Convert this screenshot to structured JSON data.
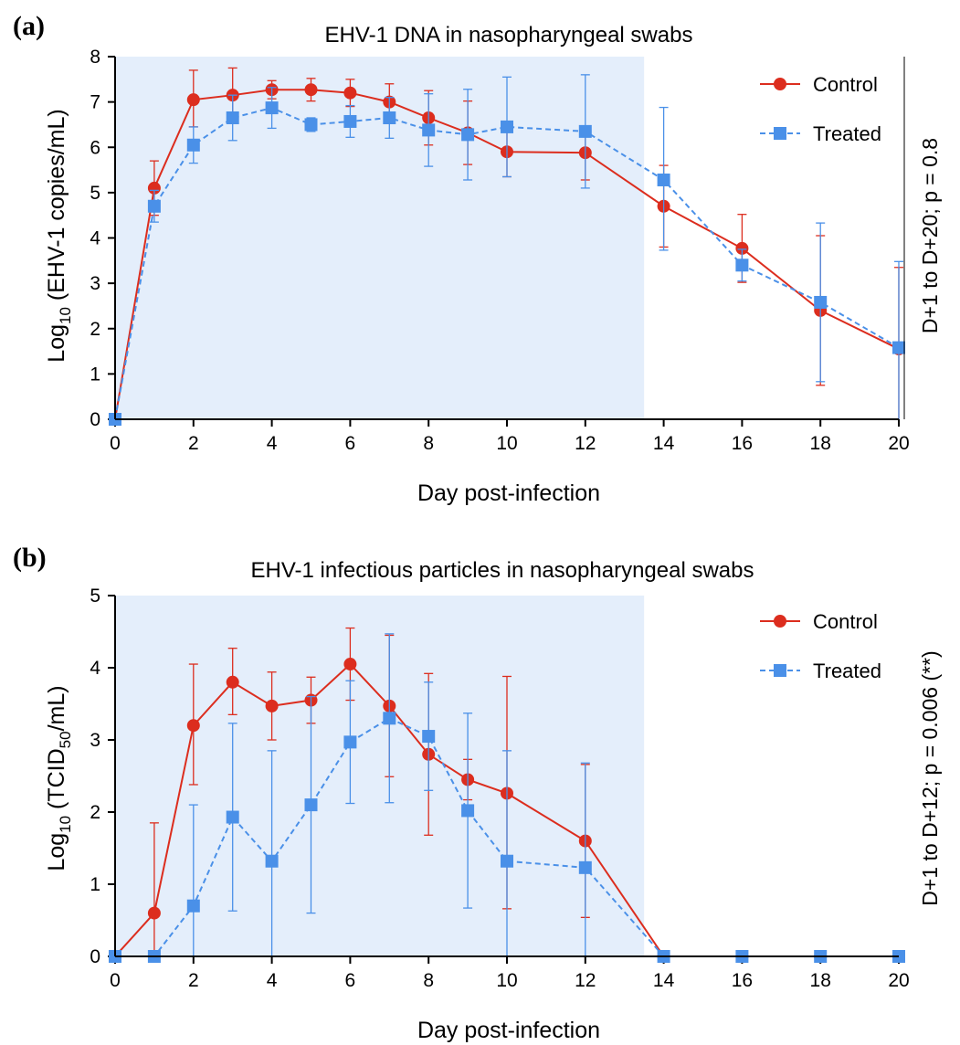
{
  "chart_data": [
    {
      "panel_label": "(a)",
      "type": "line",
      "title": "EHV-1 DNA in nasopharyngeal swabs",
      "xlabel": "Day post-infection",
      "ylabel": {
        "pre": "Log",
        "sub": "10",
        "post": " (EHV-1 copies/mL)"
      },
      "stat_annotation": "D+1 to D+20; p = 0.8",
      "xlim": [
        0,
        20
      ],
      "ylim": [
        0,
        8
      ],
      "xticks": [
        "0",
        "2",
        "4",
        "6",
        "8",
        "10",
        "12",
        "14",
        "16",
        "18",
        "20"
      ],
      "yticks": [
        "0",
        "1",
        "2",
        "3",
        "4",
        "5",
        "6",
        "7",
        "8"
      ],
      "shaded_x_range": [
        0,
        13.5
      ],
      "legend_position": "top-right",
      "series": [
        {
          "name": "Control",
          "color": "#dc2d1e",
          "marker": "circle",
          "line": "solid",
          "x": [
            0,
            1,
            2,
            3,
            4,
            5,
            6,
            7,
            8,
            9,
            10,
            12,
            14,
            16,
            18,
            20
          ],
          "y": [
            0,
            5.1,
            7.05,
            7.15,
            7.27,
            7.27,
            7.2,
            7.0,
            6.65,
            6.32,
            5.9,
            5.88,
            4.7,
            3.77,
            2.4,
            1.55
          ],
          "err_low": [
            0,
            0.6,
            0.6,
            0.4,
            0.2,
            0.25,
            0.3,
            0.4,
            0.6,
            0.7,
            0.55,
            0.6,
            0.9,
            0.75,
            1.65,
            1.55
          ],
          "err_high": [
            0,
            0.6,
            0.65,
            0.6,
            0.2,
            0.25,
            0.3,
            0.4,
            0.6,
            0.7,
            0.45,
            0.55,
            0.9,
            0.75,
            1.65,
            1.8
          ]
        },
        {
          "name": "Treated",
          "color": "#4a90e8",
          "marker": "square",
          "line": "dashed",
          "x": [
            0,
            1,
            2,
            3,
            4,
            5,
            6,
            7,
            8,
            9,
            10,
            12,
            14,
            16,
            18,
            20
          ],
          "y": [
            0,
            4.7,
            6.05,
            6.65,
            6.87,
            6.5,
            6.57,
            6.65,
            6.38,
            6.28,
            6.45,
            6.35,
            5.28,
            3.4,
            2.58,
            1.58
          ],
          "err_low": [
            0,
            0.35,
            0.4,
            0.5,
            0.45,
            0.15,
            0.35,
            0.45,
            0.8,
            1.0,
            1.1,
            1.25,
            1.55,
            0.35,
            1.75,
            1.58
          ],
          "err_high": [
            0,
            0.35,
            0.4,
            0.5,
            0.45,
            0.15,
            0.35,
            0.45,
            0.8,
            1.0,
            1.1,
            1.25,
            1.6,
            0.35,
            1.75,
            1.9
          ]
        }
      ]
    },
    {
      "panel_label": "(b)",
      "type": "line",
      "title": "EHV-1 infectious particles in nasopharyngeal swabs",
      "xlabel": "Day post-infection",
      "ylabel": {
        "pre": "Log",
        "sub": "10",
        "post": " (TCID",
        "sub2": "50",
        "post2": "/mL)"
      },
      "stat_annotation": "D+1 to D+12; p = 0.006 (**)",
      "xlim": [
        0,
        20
      ],
      "ylim": [
        0,
        5
      ],
      "xticks": [
        "0",
        "2",
        "4",
        "6",
        "8",
        "10",
        "12",
        "14",
        "16",
        "18",
        "20"
      ],
      "yticks": [
        "0",
        "1",
        "2",
        "3",
        "4",
        "5"
      ],
      "shaded_x_range": [
        0,
        13.5
      ],
      "legend_position": "top-right",
      "series": [
        {
          "name": "Control",
          "color": "#dc2d1e",
          "marker": "circle",
          "line": "solid",
          "x": [
            0,
            1,
            2,
            3,
            4,
            5,
            6,
            7,
            8,
            9,
            10,
            12,
            14,
            16,
            18,
            20
          ],
          "y": [
            0,
            0.6,
            3.2,
            3.8,
            3.47,
            3.55,
            4.05,
            3.47,
            2.8,
            2.45,
            2.26,
            1.6,
            0,
            0,
            0,
            0
          ],
          "err_low": [
            0,
            0.6,
            0.82,
            0.45,
            0.47,
            0.32,
            0.5,
            0.98,
            1.12,
            0.28,
            1.6,
            1.06,
            0,
            0,
            0,
            0
          ],
          "err_high": [
            0,
            1.25,
            0.85,
            0.47,
            0.47,
            0.32,
            0.5,
            0.98,
            1.12,
            0.28,
            1.62,
            1.06,
            0,
            0,
            0,
            0
          ]
        },
        {
          "name": "Treated",
          "color": "#4a90e8",
          "marker": "square",
          "line": "dashed",
          "x": [
            0,
            1,
            2,
            3,
            4,
            5,
            6,
            7,
            8,
            9,
            10,
            12,
            14,
            16,
            18,
            20
          ],
          "y": [
            0,
            0,
            0.7,
            1.93,
            1.32,
            2.1,
            2.97,
            3.3,
            3.05,
            2.02,
            1.32,
            1.23,
            0,
            0,
            0,
            0
          ],
          "err_low": [
            0,
            0,
            0.7,
            1.3,
            1.32,
            1.5,
            0.85,
            1.17,
            0.75,
            1.35,
            1.32,
            1.23,
            0,
            0,
            0,
            0
          ],
          "err_high": [
            0,
            0,
            1.4,
            1.3,
            1.53,
            1.5,
            0.85,
            1.17,
            0.75,
            1.35,
            1.53,
            1.45,
            0,
            0,
            0,
            0
          ]
        }
      ]
    }
  ]
}
